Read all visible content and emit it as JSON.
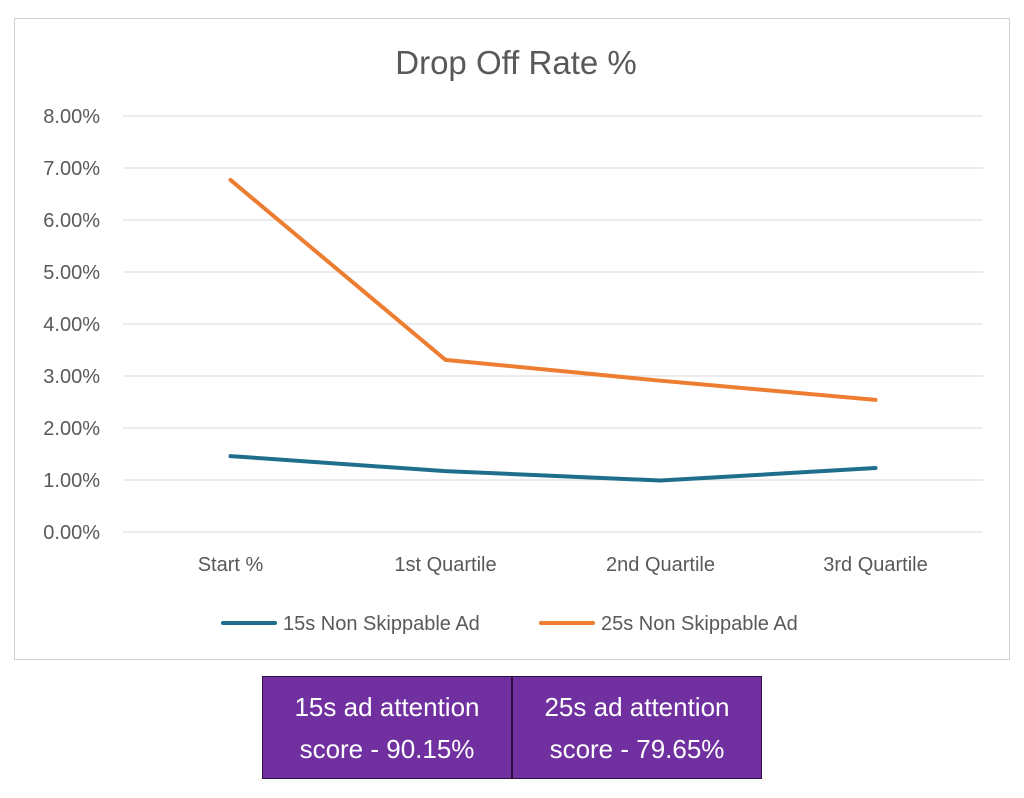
{
  "chart_data": {
    "type": "line",
    "title": "Drop Off Rate %",
    "xlabel": "",
    "ylabel": "",
    "categories": [
      "Start %",
      "1st Quartile",
      "2nd Quartile",
      "3rd Quartile"
    ],
    "series": [
      {
        "name": "15s Non Skippable Ad",
        "color": "#1f6e8c",
        "values": [
          1.46,
          1.17,
          0.99,
          1.23
        ]
      },
      {
        "name": "25s Non Skippable Ad",
        "color": "#ed7d31",
        "values": [
          6.77,
          3.31,
          2.91,
          2.54
        ]
      }
    ],
    "ylim": [
      0,
      8
    ],
    "yticks": [
      "0.00%",
      "1.00%",
      "2.00%",
      "3.00%",
      "4.00%",
      "5.00%",
      "6.00%",
      "7.00%",
      "8.00%"
    ],
    "grid": true,
    "legend_position": "bottom"
  },
  "score_boxes": [
    {
      "line1": "15s ad attention",
      "line2": "score - 90.15%"
    },
    {
      "line1": "25s ad attention",
      "line2": "score - 79.65%"
    }
  ],
  "colors": {
    "box_background": "#7030a0",
    "gridline": "#d9d9d9",
    "text": "#595959"
  }
}
